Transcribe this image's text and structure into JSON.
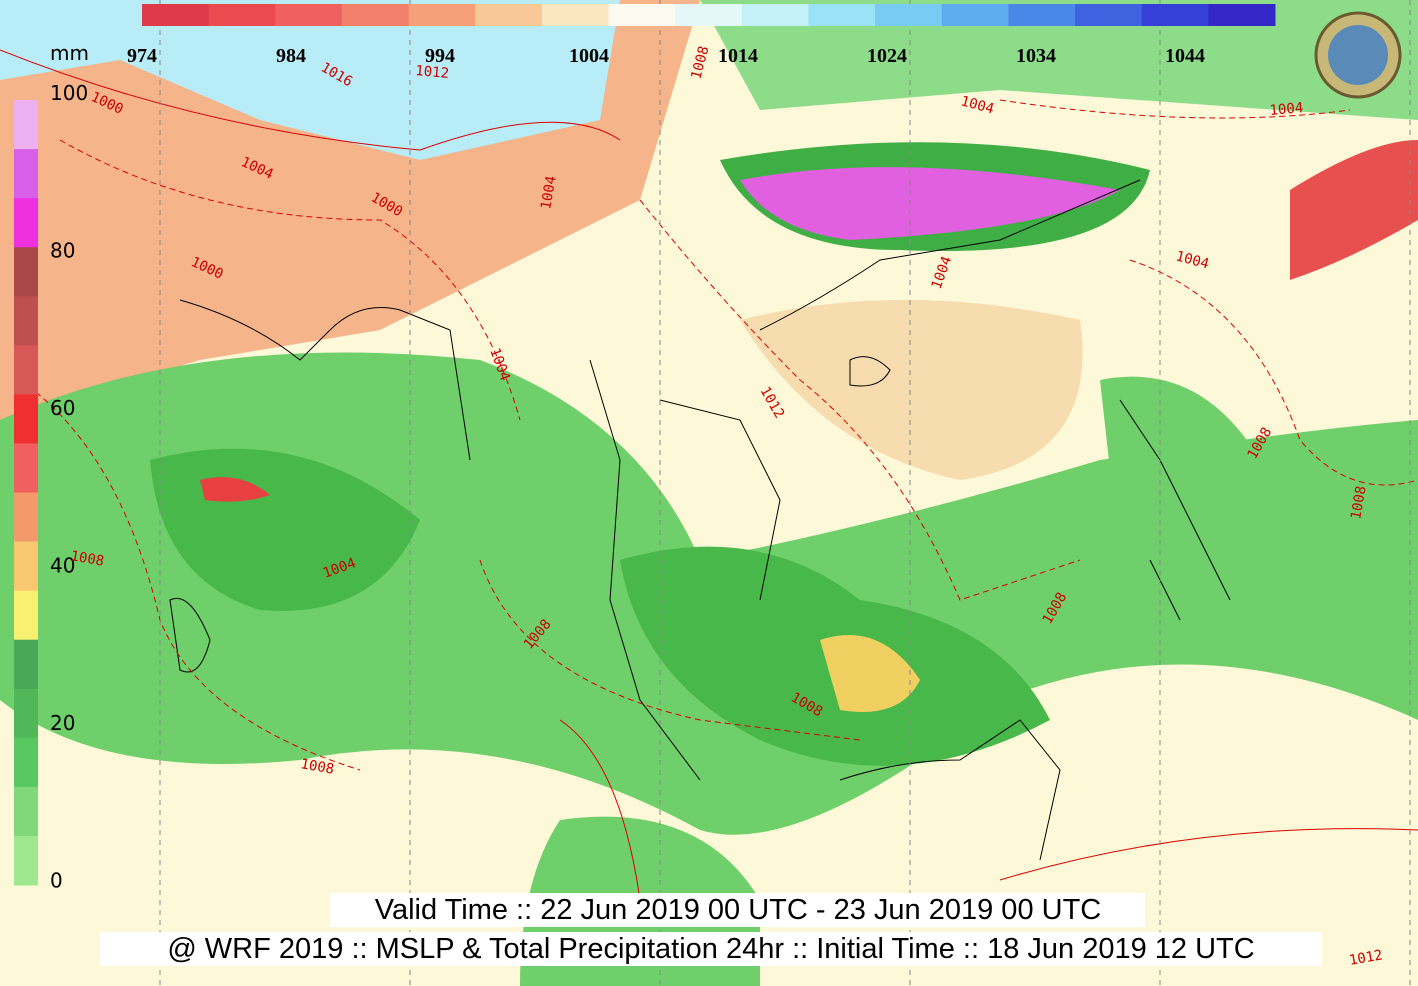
{
  "pressure_scale": {
    "labels": [
      974,
      984,
      994,
      1004,
      1014,
      1024,
      1034,
      1044
    ]
  },
  "precip_scale": {
    "unit": "mm",
    "labels": [
      100,
      80,
      60,
      40,
      20,
      0
    ]
  },
  "isobar_labels": [
    1016,
    1012,
    1004,
    1000,
    1000,
    1000,
    1004,
    1012,
    1008,
    1004,
    1004,
    1004,
    1004,
    1008,
    1008,
    1008,
    1008,
    1008,
    1008,
    1004,
    1004,
    1008,
    1012
  ],
  "footer": {
    "valid_time": "Valid Time :: 22 Jun 2019 00 UTC - 23 Jun 2019 00 UTC",
    "model_info": "@ WRF 2019 :: MSLP & Total Precipitation 24hr :: Initial Time :: 18 Jun 2019 12 UTC"
  }
}
